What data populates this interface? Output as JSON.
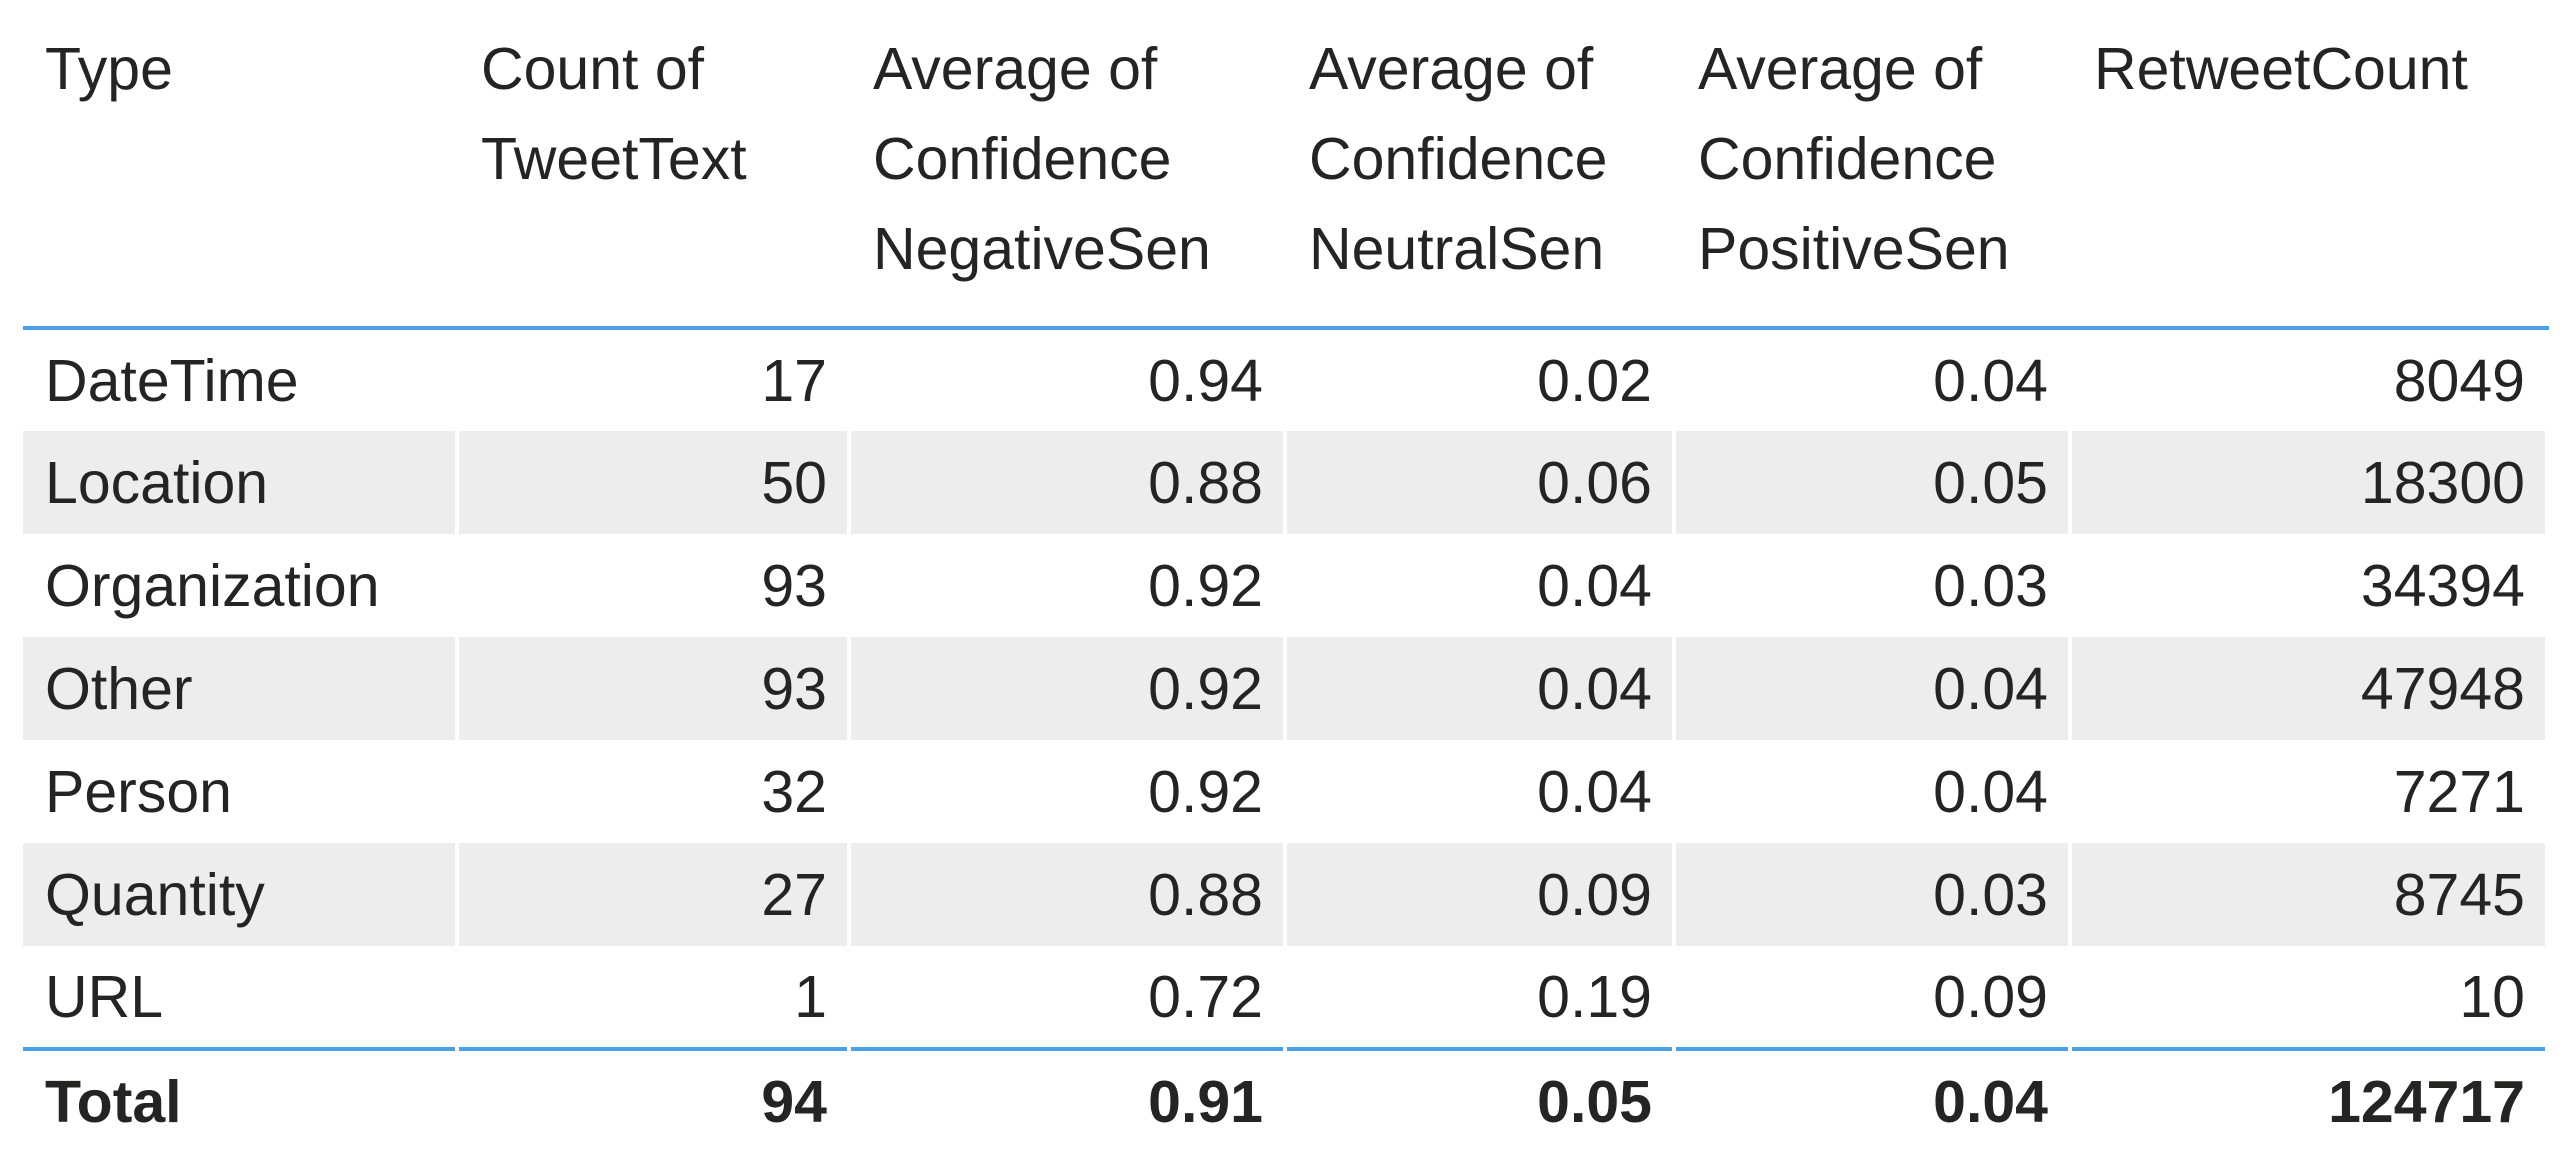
{
  "table": {
    "columns": [
      "Type",
      "Count of TweetText",
      "Average of Confidence NegativeSen",
      "Average of Confidence NeutralSen",
      "Average of Confidence PositiveSen",
      "RetweetCount"
    ],
    "rows": [
      [
        "DateTime",
        17,
        0.94,
        0.02,
        0.04,
        8049
      ],
      [
        "Location",
        50,
        0.88,
        0.06,
        0.05,
        18300
      ],
      [
        "Organization",
        93,
        0.92,
        0.04,
        0.03,
        34394
      ],
      [
        "Other",
        93,
        0.92,
        0.04,
        0.04,
        47948
      ],
      [
        "Person",
        32,
        0.92,
        0.04,
        0.04,
        7271
      ],
      [
        "Quantity",
        27,
        0.88,
        0.09,
        0.03,
        8745
      ],
      [
        "URL",
        1,
        0.72,
        0.19,
        0.09,
        10
      ]
    ],
    "total": [
      "Total",
      94,
      0.91,
      0.05,
      0.04,
      124717
    ]
  }
}
